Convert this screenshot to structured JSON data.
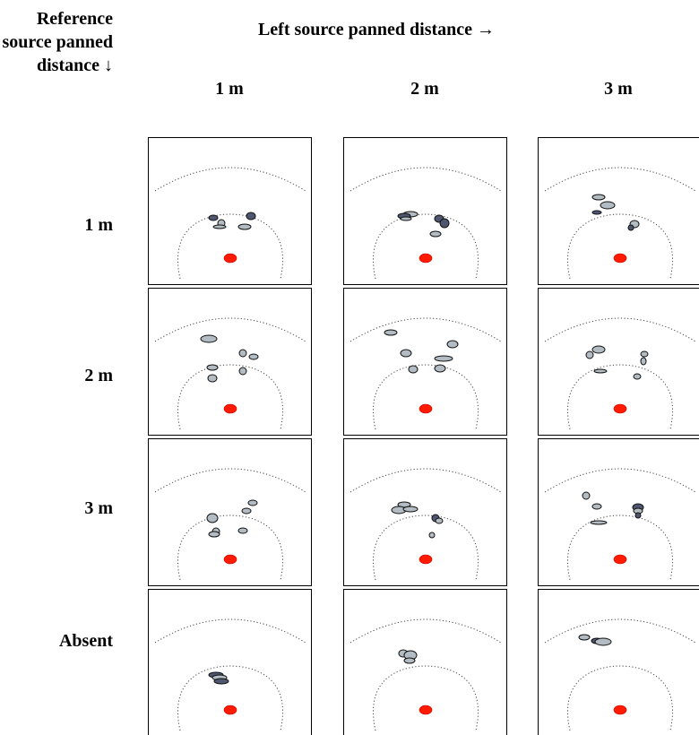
{
  "row_axis_title": "Reference source panned distance ↓",
  "col_axis_title": "Left source panned distance →",
  "columns": [
    "1 m",
    "2 m",
    "3 m"
  ],
  "rows": [
    "1 m",
    "2 m",
    "3 m",
    "Absent"
  ],
  "colors": {
    "light_blob": "#b3bcc2",
    "dark_blob": "#4f5670",
    "listener": "#ff1a00",
    "frame": "#000000"
  }
}
